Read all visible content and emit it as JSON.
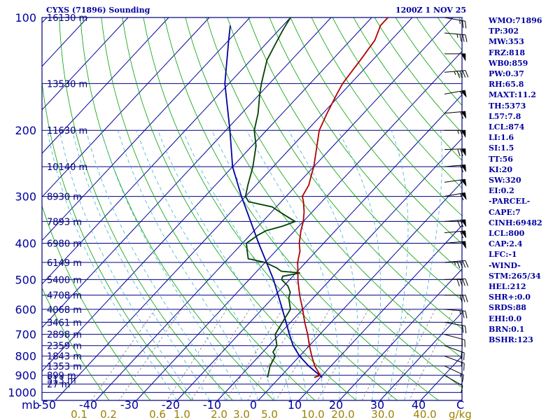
{
  "header": {
    "station": "CYXS (71896) Sounding",
    "time": "1200Z  1 NOV 25"
  },
  "indices": [
    "WMO:71896",
    "TP:302",
    "MW:353",
    "FRZ:818",
    "WB0:859",
    "PW:0.37",
    "RH:65.8",
    "MAXT:11.2",
    "TH:5373",
    "L57:7.8",
    "LCL:874",
    "LI:1.6",
    "SI:1.5",
    "TT:56",
    "KI:20",
    "SW:320",
    "EI:0.2",
    "-PARCEL-",
    "CAPE:7",
    "CINH:69482",
    "LCL:800",
    "CAP:2.4",
    "LFC:-1",
    "-WIND-",
    "STM:265/34",
    "HEL:212",
    "SHR+:0.0",
    "SRDS:88",
    "EHI:0.0",
    "BRN:0.1",
    "BSHR:123"
  ],
  "colors": {
    "isobar": "#000080",
    "isotherm": "#0000a0",
    "dry_adiabat": "#00a000",
    "moist_adiabat": "#40b0d0",
    "mixing_ratio": "#808080",
    "temperature": "#b00000",
    "dewpoint": "#004000",
    "parcel": "#0000a0",
    "wind": "#000000",
    "text": "#0000a0",
    "mr_text": "#a08000"
  },
  "chart_data": {
    "type": "line",
    "skew_t": true,
    "pressure_ticks": [
      100,
      200,
      300,
      400,
      500,
      600,
      700,
      800,
      900,
      1000
    ],
    "pressure_labels": [
      "100",
      "200",
      "300",
      "400",
      "500",
      "600",
      "700",
      "800",
      "900",
      "1000"
    ],
    "x_tick_labels": [
      "-50",
      "-40",
      "-30",
      "-20",
      "-10",
      "0",
      "10",
      "20",
      "30",
      "40"
    ],
    "x_unit": "C",
    "mixing_ratio_labels": [
      "0.1",
      "0.2",
      "0.6",
      "1.0",
      "2.0",
      "3.0",
      "5.0",
      "10.0",
      "20.0",
      "30.0",
      "40.0"
    ],
    "mixing_ratio_unit": "g/kg",
    "height_levels": [
      {
        "p": 100,
        "label": "16130 m"
      },
      {
        "p": 150,
        "label": "13530 m"
      },
      {
        "p": 200,
        "label": "11630 m"
      },
      {
        "p": 250,
        "label": "10140 m"
      },
      {
        "p": 300,
        "label": "8930 m"
      },
      {
        "p": 350,
        "label": "7893 m"
      },
      {
        "p": 400,
        "label": "6980 m"
      },
      {
        "p": 450,
        "label": "6149 m"
      },
      {
        "p": 500,
        "label": "5400 m"
      },
      {
        "p": 550,
        "label": "4708 m"
      },
      {
        "p": 600,
        "label": "4068 m"
      },
      {
        "p": 650,
        "label": "3461 m"
      },
      {
        "p": 700,
        "label": "2898 m"
      },
      {
        "p": 750,
        "label": "2359 m"
      },
      {
        "p": 800,
        "label": "1843 m"
      },
      {
        "p": 850,
        "label": "1353 m"
      },
      {
        "p": 900,
        "label": "899 m"
      },
      {
        "p": 925,
        "label": "513 m"
      },
      {
        "p": 950,
        "label": "27 m"
      }
    ],
    "temperature_profile": [
      [
        912,
        8.5
      ],
      [
        900,
        9.5
      ],
      [
        850,
        6
      ],
      [
        800,
        3
      ],
      [
        750,
        0
      ],
      [
        700,
        -3
      ],
      [
        650,
        -6.5
      ],
      [
        600,
        -10
      ],
      [
        550,
        -14
      ],
      [
        500,
        -18
      ],
      [
        480,
        -19.5
      ],
      [
        450,
        -22
      ],
      [
        420,
        -24
      ],
      [
        400,
        -26
      ],
      [
        370,
        -28.5
      ],
      [
        350,
        -30
      ],
      [
        330,
        -32
      ],
      [
        310,
        -34.5
      ],
      [
        300,
        -36
      ],
      [
        280,
        -37
      ],
      [
        260,
        -39
      ],
      [
        250,
        -40
      ],
      [
        220,
        -44
      ],
      [
        200,
        -47
      ],
      [
        180,
        -49
      ],
      [
        160,
        -51
      ],
      [
        150,
        -52
      ],
      [
        130,
        -53
      ],
      [
        115,
        -54
      ],
      [
        105,
        -56
      ],
      [
        100,
        -56
      ]
    ],
    "dewpoint_profile": [
      [
        912,
        -3
      ],
      [
        880,
        -4
      ],
      [
        850,
        -5
      ],
      [
        800,
        -6
      ],
      [
        780,
        -7.5
      ],
      [
        750,
        -8
      ],
      [
        700,
        -11
      ],
      [
        650,
        -12
      ],
      [
        600,
        -13
      ],
      [
        560,
        -16
      ],
      [
        540,
        -17
      ],
      [
        520,
        -19
      ],
      [
        500,
        -22
      ],
      [
        490,
        -22.5
      ],
      [
        480,
        -19
      ],
      [
        475,
        -24
      ],
      [
        465,
        -26
      ],
      [
        450,
        -30
      ],
      [
        440,
        -35
      ],
      [
        420,
        -37
      ],
      [
        400,
        -39
      ],
      [
        380,
        -38
      ],
      [
        370,
        -37
      ],
      [
        360,
        -34
      ],
      [
        350,
        -32
      ],
      [
        340,
        -35
      ],
      [
        330,
        -38
      ],
      [
        320,
        -41
      ],
      [
        310,
        -48
      ],
      [
        300,
        -50
      ],
      [
        280,
        -52
      ],
      [
        250,
        -55
      ],
      [
        220,
        -59
      ],
      [
        200,
        -63
      ],
      [
        180,
        -66
      ],
      [
        160,
        -70
      ],
      [
        150,
        -72
      ],
      [
        130,
        -76
      ],
      [
        115,
        -78
      ],
      [
        108,
        -79
      ],
      [
        100,
        -80
      ]
    ],
    "parcel_profile": [
      [
        912,
        10.5
      ],
      [
        850,
        4.5
      ],
      [
        800,
        0
      ],
      [
        750,
        -4
      ],
      [
        700,
        -7.5
      ],
      [
        600,
        -15
      ],
      [
        500,
        -24
      ],
      [
        400,
        -36
      ],
      [
        300,
        -51
      ],
      [
        250,
        -60
      ],
      [
        200,
        -69
      ],
      [
        150,
        -81
      ],
      [
        115,
        -90
      ],
      [
        105,
        -93
      ]
    ],
    "wind_barbs": [
      {
        "p": 100,
        "dir": 280,
        "spd": 25
      },
      {
        "p": 110,
        "dir": 275,
        "spd": 35
      },
      {
        "p": 125,
        "dir": 270,
        "spd": 50
      },
      {
        "p": 140,
        "dir": 265,
        "spd": 45
      },
      {
        "p": 160,
        "dir": 260,
        "spd": 55
      },
      {
        "p": 180,
        "dir": 265,
        "spd": 60
      },
      {
        "p": 200,
        "dir": 270,
        "spd": 65
      },
      {
        "p": 225,
        "dir": 268,
        "spd": 70
      },
      {
        "p": 250,
        "dir": 265,
        "spd": 60
      },
      {
        "p": 275,
        "dir": 262,
        "spd": 55
      },
      {
        "p": 300,
        "dir": 260,
        "spd": 60
      },
      {
        "p": 350,
        "dir": 265,
        "spd": 70
      },
      {
        "p": 375,
        "dir": 265,
        "spd": 60
      },
      {
        "p": 400,
        "dir": 265,
        "spd": 50
      },
      {
        "p": 450,
        "dir": 265,
        "spd": 45
      },
      {
        "p": 500,
        "dir": 268,
        "spd": 40
      },
      {
        "p": 550,
        "dir": 270,
        "spd": 30
      },
      {
        "p": 600,
        "dir": 275,
        "spd": 25
      },
      {
        "p": 650,
        "dir": 280,
        "spd": 20
      },
      {
        "p": 700,
        "dir": 285,
        "spd": 20
      },
      {
        "p": 750,
        "dir": 290,
        "spd": 20
      },
      {
        "p": 800,
        "dir": 290,
        "spd": 15
      },
      {
        "p": 850,
        "dir": 295,
        "spd": 15
      },
      {
        "p": 900,
        "dir": 300,
        "spd": 10
      }
    ]
  }
}
